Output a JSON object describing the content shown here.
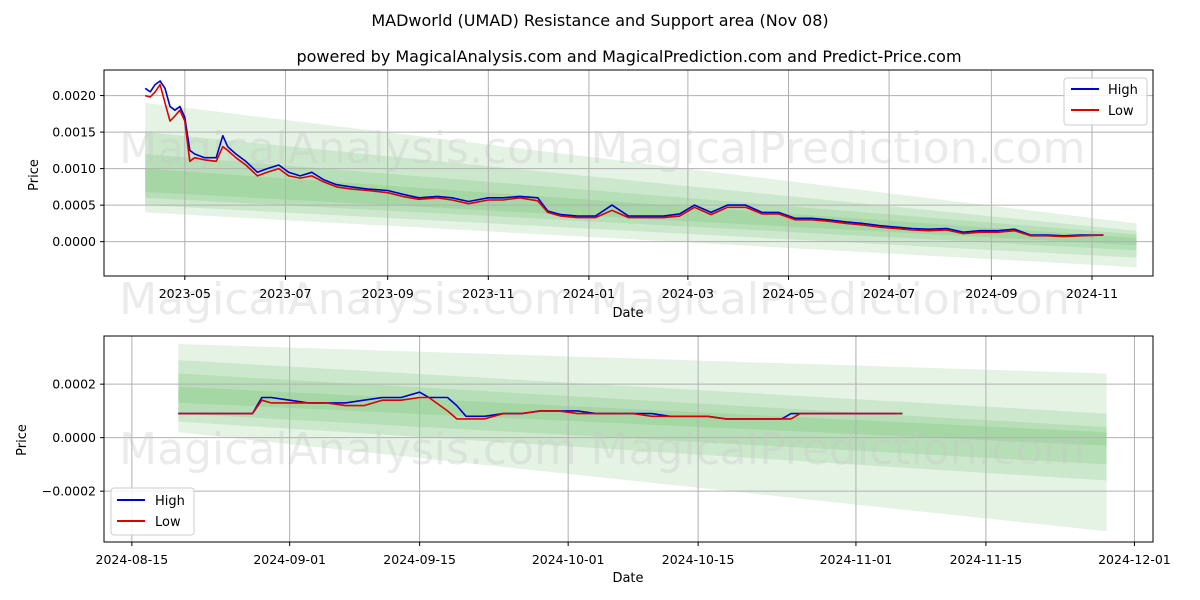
{
  "figure": {
    "title": "MADworld (UMAD) Resistance and Support area (Nov 08)",
    "subtitle": "powered by MagicalAnalysis.com and MagicalPrediction.com and Predict-Price.com",
    "watermarks": [
      "MagicalAnalysis.com",
      "MagicalPrediction.com"
    ]
  },
  "colors": {
    "high": "#0000cc",
    "low": "#dd0000",
    "band": "#2ca02c",
    "grid": "#b0b0b0"
  },
  "chart_data": [
    {
      "type": "line",
      "panel": "top",
      "xlabel": "Date",
      "ylabel": "Price",
      "x_ticks": [
        "2023-05",
        "2023-07",
        "2023-09",
        "2023-11",
        "2024-01",
        "2024-03",
        "2024-05",
        "2024-07",
        "2024-09",
        "2024-11"
      ],
      "x_tick_dates": [
        "2023-05-01",
        "2023-07-01",
        "2023-09-01",
        "2023-11-01",
        "2024-01-01",
        "2024-03-01",
        "2024-05-01",
        "2024-07-01",
        "2024-09-01",
        "2024-11-01"
      ],
      "y_ticks": [
        "0.0000",
        "0.0005",
        "0.0010",
        "0.0015",
        "0.0020"
      ],
      "xlim": [
        "2023-03-13",
        "2024-12-08"
      ],
      "ylim": [
        -0.00047,
        0.00235
      ],
      "grid": true,
      "legend": "top-right",
      "legend_entries": [
        "High",
        "Low"
      ],
      "series": [
        {
          "name": "High",
          "x": [
            "2023-04-07",
            "2023-04-10",
            "2023-04-13",
            "2023-04-16",
            "2023-04-19",
            "2023-04-22",
            "2023-04-25",
            "2023-04-28",
            "2023-05-01",
            "2023-05-04",
            "2023-05-07",
            "2023-05-13",
            "2023-05-20",
            "2023-05-24",
            "2023-05-27",
            "2023-06-01",
            "2023-06-07",
            "2023-06-14",
            "2023-06-20",
            "2023-06-27",
            "2023-07-03",
            "2023-07-10",
            "2023-07-17",
            "2023-07-24",
            "2023-08-01",
            "2023-08-10",
            "2023-08-20",
            "2023-09-01",
            "2023-09-10",
            "2023-09-20",
            "2023-10-01",
            "2023-10-10",
            "2023-10-20",
            "2023-11-01",
            "2023-11-10",
            "2023-11-20",
            "2023-12-01",
            "2023-12-07",
            "2023-12-15",
            "2023-12-25",
            "2024-01-05",
            "2024-01-15",
            "2024-01-25",
            "2024-02-05",
            "2024-02-15",
            "2024-02-25",
            "2024-03-05",
            "2024-03-15",
            "2024-03-25",
            "2024-04-05",
            "2024-04-15",
            "2024-04-25",
            "2024-05-05",
            "2024-05-15",
            "2024-05-25",
            "2024-06-05",
            "2024-06-15",
            "2024-06-25",
            "2024-07-05",
            "2024-07-15",
            "2024-07-25",
            "2024-08-05",
            "2024-08-15",
            "2024-08-25",
            "2024-09-05",
            "2024-09-15",
            "2024-09-25",
            "2024-10-05",
            "2024-10-15",
            "2024-10-25",
            "2024-11-08"
          ],
          "y": [
            0.0021,
            0.00205,
            0.00215,
            0.0022,
            0.0021,
            0.00185,
            0.0018,
            0.00185,
            0.0017,
            0.00125,
            0.0012,
            0.00115,
            0.00115,
            0.00145,
            0.0013,
            0.0012,
            0.0011,
            0.00095,
            0.001,
            0.00105,
            0.00095,
            0.0009,
            0.00095,
            0.00085,
            0.00078,
            0.00075,
            0.00072,
            0.0007,
            0.00065,
            0.0006,
            0.00062,
            0.0006,
            0.00055,
            0.0006,
            0.0006,
            0.00062,
            0.0006,
            0.00042,
            0.00037,
            0.00035,
            0.00035,
            0.0005,
            0.00035,
            0.00035,
            0.00035,
            0.00038,
            0.0005,
            0.0004,
            0.0005,
            0.0005,
            0.0004,
            0.0004,
            0.00032,
            0.00032,
            0.0003,
            0.00027,
            0.00025,
            0.00022,
            0.0002,
            0.00018,
            0.00017,
            0.00018,
            0.00013,
            0.00015,
            0.00015,
            0.00017,
            9e-05,
            9e-05,
            8e-05,
            9e-05,
            9e-05
          ]
        },
        {
          "name": "Low",
          "x": [
            "2023-04-07",
            "2023-04-10",
            "2023-04-13",
            "2023-04-16",
            "2023-04-19",
            "2023-04-22",
            "2023-04-25",
            "2023-04-28",
            "2023-05-01",
            "2023-05-04",
            "2023-05-07",
            "2023-05-13",
            "2023-05-20",
            "2023-05-24",
            "2023-05-27",
            "2023-06-01",
            "2023-06-07",
            "2023-06-14",
            "2023-06-20",
            "2023-06-27",
            "2023-07-03",
            "2023-07-10",
            "2023-07-17",
            "2023-07-24",
            "2023-08-01",
            "2023-08-10",
            "2023-08-20",
            "2023-09-01",
            "2023-09-10",
            "2023-09-20",
            "2023-10-01",
            "2023-10-10",
            "2023-10-20",
            "2023-11-01",
            "2023-11-10",
            "2023-11-20",
            "2023-12-01",
            "2023-12-07",
            "2023-12-15",
            "2023-12-25",
            "2024-01-05",
            "2024-01-15",
            "2024-01-25",
            "2024-02-05",
            "2024-02-15",
            "2024-02-25",
            "2024-03-05",
            "2024-03-15",
            "2024-03-25",
            "2024-04-05",
            "2024-04-15",
            "2024-04-25",
            "2024-05-05",
            "2024-05-15",
            "2024-05-25",
            "2024-06-05",
            "2024-06-15",
            "2024-06-25",
            "2024-07-05",
            "2024-07-15",
            "2024-07-25",
            "2024-08-05",
            "2024-08-15",
            "2024-08-25",
            "2024-09-05",
            "2024-09-15",
            "2024-09-25",
            "2024-10-05",
            "2024-10-15",
            "2024-10-25",
            "2024-11-08"
          ],
          "y": [
            0.002,
            0.00198,
            0.00205,
            0.00215,
            0.0019,
            0.00165,
            0.00172,
            0.0018,
            0.00165,
            0.0011,
            0.00115,
            0.00112,
            0.0011,
            0.0013,
            0.00125,
            0.00115,
            0.00105,
            0.0009,
            0.00095,
            0.001,
            0.0009,
            0.00087,
            0.0009,
            0.00082,
            0.00075,
            0.00072,
            0.0007,
            0.00067,
            0.00062,
            0.00058,
            0.0006,
            0.00057,
            0.00052,
            0.00057,
            0.00057,
            0.0006,
            0.00056,
            0.0004,
            0.00035,
            0.00033,
            0.00033,
            0.00043,
            0.00033,
            0.00033,
            0.00033,
            0.00035,
            0.00047,
            0.00037,
            0.00047,
            0.00047,
            0.00038,
            0.00038,
            0.0003,
            0.0003,
            0.00028,
            0.00025,
            0.00023,
            0.0002,
            0.00018,
            0.00016,
            0.00015,
            0.00016,
            0.00011,
            0.00013,
            0.00013,
            0.00015,
            8e-05,
            8e-05,
            7e-05,
            8e-05,
            9e-05
          ]
        }
      ],
      "bands": [
        {
          "start": "2023-04-07",
          "end": "2024-11-28",
          "upper": [
            0.0019,
            0.00025
          ],
          "lower": [
            0.0004,
            -0.00035
          ]
        },
        {
          "start": "2023-04-07",
          "end": "2024-11-28",
          "upper": [
            0.0015,
            0.00015
          ],
          "lower": [
            0.0005,
            -0.00022
          ]
        },
        {
          "start": "2023-04-07",
          "end": "2024-11-28",
          "upper": [
            0.0012,
            0.0001
          ],
          "lower": [
            0.0006,
            -0.00012
          ]
        },
        {
          "start": "2023-04-07",
          "end": "2024-11-28",
          "upper": [
            0.001,
            5e-05
          ],
          "lower": [
            0.00068,
            -5e-05
          ]
        }
      ]
    },
    {
      "type": "line",
      "panel": "bottom",
      "xlabel": "Date",
      "ylabel": "Price",
      "x_ticks": [
        "2024-08-15",
        "2024-09-01",
        "2024-09-15",
        "2024-10-01",
        "2024-10-15",
        "2024-11-01",
        "2024-11-15",
        "2024-12-01"
      ],
      "x_tick_dates": [
        "2024-08-15",
        "2024-09-01",
        "2024-09-15",
        "2024-10-01",
        "2024-10-15",
        "2024-11-01",
        "2024-11-15",
        "2024-12-01"
      ],
      "y_ticks": [
        "−0.0002",
        "0.0000",
        "0.0002"
      ],
      "xlim": [
        "2024-08-12",
        "2024-12-03"
      ],
      "ylim": [
        -0.00039,
        0.00038
      ],
      "grid": true,
      "legend": "bottom-left",
      "legend_entries": [
        "High",
        "Low"
      ],
      "series": [
        {
          "name": "High",
          "x": [
            "2024-08-20",
            "2024-08-22",
            "2024-08-24",
            "2024-08-26",
            "2024-08-28",
            "2024-08-29",
            "2024-08-30",
            "2024-09-01",
            "2024-09-03",
            "2024-09-05",
            "2024-09-07",
            "2024-09-09",
            "2024-09-11",
            "2024-09-13",
            "2024-09-15",
            "2024-09-16",
            "2024-09-18",
            "2024-09-19",
            "2024-09-20",
            "2024-09-22",
            "2024-09-24",
            "2024-09-26",
            "2024-09-28",
            "2024-09-30",
            "2024-10-02",
            "2024-10-04",
            "2024-10-06",
            "2024-10-08",
            "2024-10-10",
            "2024-10-12",
            "2024-10-14",
            "2024-10-16",
            "2024-10-18",
            "2024-10-20",
            "2024-10-22",
            "2024-10-24",
            "2024-10-25",
            "2024-10-26",
            "2024-10-28",
            "2024-10-30",
            "2024-11-01",
            "2024-11-03",
            "2024-11-05",
            "2024-11-06"
          ],
          "y": [
            9e-05,
            9e-05,
            9e-05,
            9e-05,
            9e-05,
            0.00015,
            0.00015,
            0.00014,
            0.00013,
            0.00013,
            0.00013,
            0.00014,
            0.00015,
            0.00015,
            0.00017,
            0.00015,
            0.00015,
            0.00012,
            8e-05,
            8e-05,
            9e-05,
            9e-05,
            0.0001,
            0.0001,
            0.0001,
            9e-05,
            9e-05,
            9e-05,
            9e-05,
            8e-05,
            8e-05,
            8e-05,
            7e-05,
            7e-05,
            7e-05,
            7e-05,
            9e-05,
            9e-05,
            9e-05,
            9e-05,
            9e-05,
            9e-05,
            9e-05,
            9e-05
          ]
        },
        {
          "name": "Low",
          "x": [
            "2024-08-20",
            "2024-08-22",
            "2024-08-24",
            "2024-08-26",
            "2024-08-28",
            "2024-08-29",
            "2024-08-30",
            "2024-09-01",
            "2024-09-03",
            "2024-09-05",
            "2024-09-07",
            "2024-09-09",
            "2024-09-11",
            "2024-09-13",
            "2024-09-15",
            "2024-09-16",
            "2024-09-18",
            "2024-09-19",
            "2024-09-20",
            "2024-09-22",
            "2024-09-24",
            "2024-09-26",
            "2024-09-28",
            "2024-09-30",
            "2024-10-02",
            "2024-10-04",
            "2024-10-06",
            "2024-10-08",
            "2024-10-10",
            "2024-10-12",
            "2024-10-14",
            "2024-10-16",
            "2024-10-18",
            "2024-10-20",
            "2024-10-22",
            "2024-10-24",
            "2024-10-25",
            "2024-10-26",
            "2024-10-28",
            "2024-10-30",
            "2024-11-01",
            "2024-11-03",
            "2024-11-05",
            "2024-11-06"
          ],
          "y": [
            9e-05,
            9e-05,
            9e-05,
            9e-05,
            9e-05,
            0.00014,
            0.00013,
            0.00013,
            0.00013,
            0.00013,
            0.00012,
            0.00012,
            0.00014,
            0.00014,
            0.00015,
            0.00015,
            0.0001,
            7e-05,
            7e-05,
            7e-05,
            9e-05,
            9e-05,
            0.0001,
            0.0001,
            9e-05,
            9e-05,
            9e-05,
            9e-05,
            8e-05,
            8e-05,
            8e-05,
            8e-05,
            7e-05,
            7e-05,
            7e-05,
            7e-05,
            7e-05,
            9e-05,
            9e-05,
            9e-05,
            9e-05,
            9e-05,
            9e-05,
            9e-05
          ]
        }
      ],
      "bands": [
        {
          "start": "2024-08-20",
          "end": "2024-11-28",
          "upper": [
            0.00035,
            0.00024
          ],
          "lower": [
            2e-05,
            -0.00035
          ]
        },
        {
          "start": "2024-08-20",
          "end": "2024-11-28",
          "upper": [
            0.00029,
            9e-05
          ],
          "lower": [
            6e-05,
            -0.00016
          ]
        },
        {
          "start": "2024-08-20",
          "end": "2024-11-28",
          "upper": [
            0.00024,
            4e-05
          ],
          "lower": [
            9e-05,
            -0.0001
          ]
        },
        {
          "start": "2024-08-20",
          "end": "2024-11-28",
          "upper": [
            0.00019,
            2e-05
          ],
          "lower": [
            0.00013,
            -3e-05
          ]
        }
      ]
    }
  ]
}
